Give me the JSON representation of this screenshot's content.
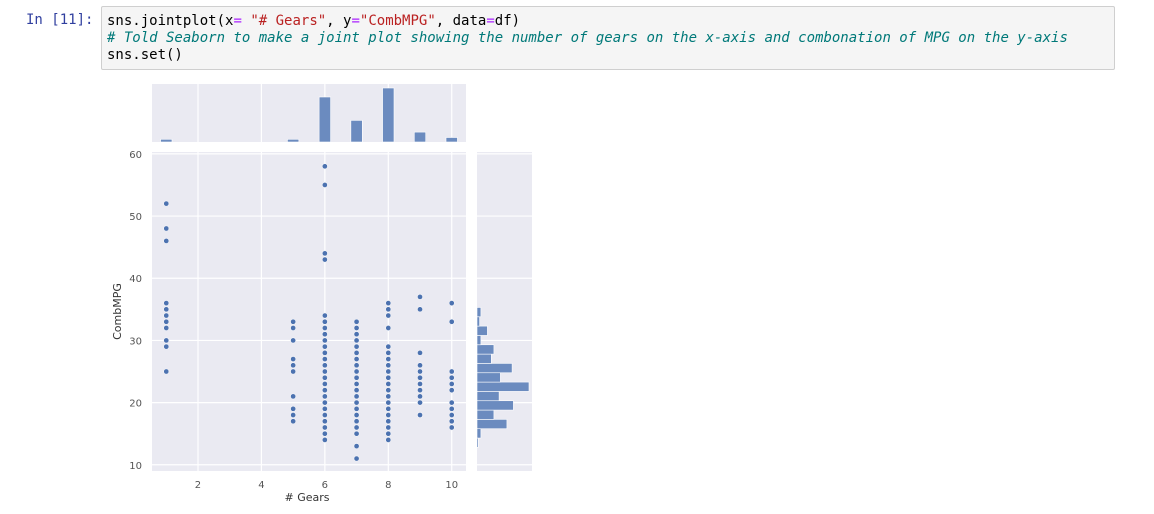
{
  "cell": {
    "prompt": "In [11]:",
    "code": {
      "line1": {
        "a": "sns.jointplot(x",
        "op1": "=",
        "b": " ",
        "s1": "\"# Gears\"",
        "c": ", y",
        "op2": "=",
        "s2": "\"CombMPG\"",
        "d": ", data",
        "op3": "=",
        "e": "df)"
      },
      "comment": "# Told Seaborn to make a joint plot showing the number of gears on the x-axis and combonation of MPG on the y-axis",
      "line3": "sns.set()"
    }
  },
  "chart_data": {
    "type": "scatter",
    "xlabel": "# Gears",
    "ylabel": "CombMPG",
    "xlim": [
      0.55,
      10.45
    ],
    "ylim": [
      9.0,
      60.3
    ],
    "xticks": [
      2,
      4,
      6,
      8,
      10
    ],
    "yticks": [
      10,
      20,
      30,
      40,
      50,
      60
    ],
    "grid": true,
    "colors": {
      "point": "#4c72b0",
      "bar": "#6b8bbf",
      "background": "#eaeaf2",
      "grid": "#ffffff"
    },
    "series": [
      {
        "x": 1,
        "y": [
          52,
          48,
          46,
          36,
          35,
          34,
          33,
          32,
          30,
          29,
          25
        ]
      },
      {
        "x": 5,
        "y": [
          33,
          32,
          30,
          27,
          26,
          25,
          21,
          19,
          18,
          17
        ]
      },
      {
        "x": 6,
        "y": [
          58,
          55,
          44,
          43,
          34,
          33,
          32,
          31,
          30,
          29,
          28,
          27,
          26,
          25,
          24,
          23,
          22,
          21,
          20,
          19,
          18,
          17,
          16,
          15,
          14
        ]
      },
      {
        "x": 7,
        "y": [
          33,
          32,
          31,
          30,
          29,
          28,
          27,
          26,
          25,
          24,
          23,
          22,
          21,
          20,
          19,
          18,
          17,
          16,
          15,
          13,
          11
        ]
      },
      {
        "x": 8,
        "y": [
          36,
          35,
          34,
          32,
          29,
          28,
          27,
          26,
          25,
          24,
          23,
          22,
          21,
          20,
          19,
          18,
          17,
          16,
          15,
          14
        ]
      },
      {
        "x": 9,
        "y": [
          37,
          35,
          28,
          26,
          25,
          24,
          23,
          22,
          21,
          20,
          18
        ]
      },
      {
        "x": 10,
        "y": [
          36,
          33,
          25,
          24,
          23,
          22,
          20,
          19,
          18,
          17,
          16
        ]
      }
    ],
    "marginal_x": {
      "bins": [
        1,
        5,
        6,
        7,
        8,
        9,
        10
      ],
      "counts": [
        3,
        3,
        50,
        24,
        60,
        11,
        5
      ]
    },
    "marginal_y": {
      "bin_edges": [
        12.8,
        14.3,
        15.8,
        17.3,
        18.8,
        20.3,
        21.8,
        23.3,
        24.8,
        26.3,
        27.8,
        29.3,
        30.8,
        32.3,
        33.8,
        35.3
      ],
      "counts": [
        1,
        3,
        23,
        13,
        28,
        17,
        40,
        18,
        27,
        11,
        13,
        3,
        8,
        2,
        3
      ]
    }
  }
}
